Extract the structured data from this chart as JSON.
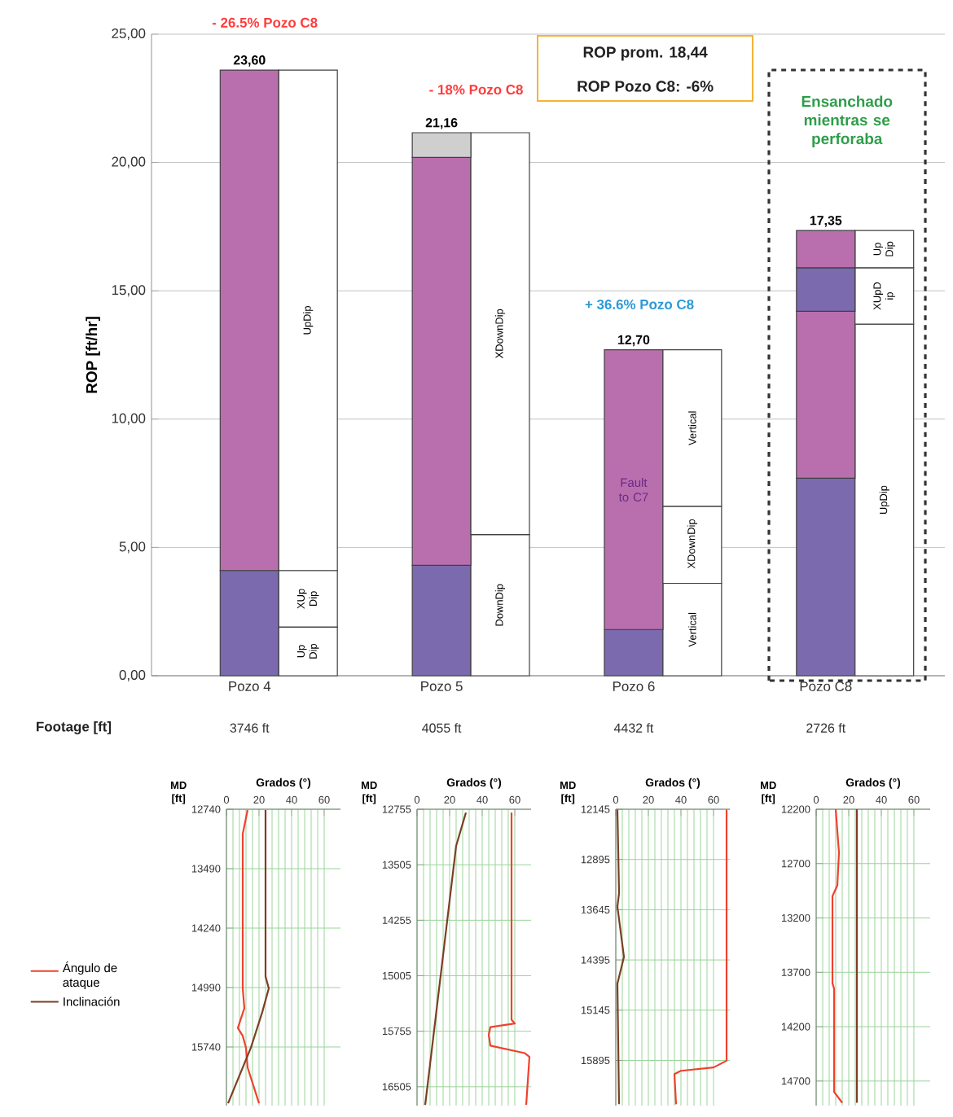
{
  "chart_data": [
    {
      "type": "bar",
      "stacked": true,
      "ylabel": "ROP [ft/hr]",
      "grid": "y",
      "ylim": [
        0,
        25
      ],
      "yticks": [
        {
          "value": 0,
          "label": "0,00"
        },
        {
          "value": 5,
          "label": "5,00"
        },
        {
          "value": 10,
          "label": "10,00"
        },
        {
          "value": 15,
          "label": "15,00"
        },
        {
          "value": 20,
          "label": "20,00"
        },
        {
          "value": 25,
          "label": "25,00"
        }
      ],
      "categories": [
        "Pozo 4",
        null,
        "Pozo 5",
        null,
        "Pozo 6",
        null,
        "Pozo C8",
        null
      ],
      "series": [
        {
          "values": [
            4.1,
            1.9,
            4.3,
            5.5,
            1.8,
            3.6,
            7.7,
            13.7
          ],
          "colors": [
            "#7b6aad",
            "#ffffff",
            "#7b6aad",
            "#ffffff",
            "#7b6aad",
            "#ffffff",
            "#7b6aad",
            "#ffffff"
          ],
          "value_labels": [
            null,
            "Up Dip",
            null,
            "DownDip",
            null,
            "Vertical",
            null,
            "UpDip"
          ]
        },
        {
          "values": [
            19.5,
            2.2,
            15.9,
            15.66,
            10.9,
            3.0,
            6.5,
            2.2
          ],
          "colors": [
            "#b96fae",
            "#ffffff",
            "#b96fae",
            "#ffffff",
            "#b96fae",
            "#ffffff",
            "#b96fae",
            "#ffffff"
          ],
          "value_labels": [
            null,
            "XUp Dip",
            null,
            "XDownDip",
            "Fault to C7",
            "XDownDip",
            null,
            "XUpD ip"
          ]
        },
        {
          "values": [
            null,
            19.5,
            0.96,
            null,
            null,
            6.1,
            1.7,
            1.45
          ],
          "colors": [
            "#ffffff",
            "#ffffff",
            "#cfcfcf",
            "#ffffff",
            "#ffffff",
            "#ffffff",
            "#7b6aad",
            "#ffffff"
          ],
          "value_labels": [
            null,
            "UpDip",
            null,
            null,
            null,
            "Vertical",
            null,
            "Up Dip"
          ]
        },
        {
          "values": [
            null,
            null,
            null,
            null,
            null,
            null,
            1.45,
            null
          ],
          "colors": [
            "#b96fae",
            "#b96fae",
            "#b96fae",
            "#b96fae",
            "#b96fae",
            "#b96fae",
            "#b96fae",
            "#b96fae"
          ]
        }
      ],
      "totals": [
        "23,60",
        null,
        "21,16",
        null,
        "12,70",
        null,
        "17,35",
        null
      ],
      "annotations": [
        "- 26.5% Pozo C8",
        "- 18% Pozo C8",
        "+ 36.6% Pozo C8",
        "ROP prom. 18,44",
        "ROP Pozo C8: -6%",
        "Ensanchado mientras se perforaba",
        "Footage [ft]",
        "3746 ft",
        "4055 ft",
        "4432 ft",
        "2726 ft"
      ]
    },
    {
      "type": "line",
      "xlabel": "Grados (°)",
      "ylabel": "MD [ft]",
      "xlim": [
        0,
        70
      ],
      "ylim": [
        16480,
        12740
      ],
      "xticks": [
        0,
        20,
        40,
        60
      ],
      "yticks": [
        12740,
        13490,
        14240,
        14990,
        15740
      ],
      "grid": true,
      "legend": "left",
      "series": [
        {
          "name": "Ángulo de ataque",
          "color": "#f0412d",
          "x": [
            13,
            10,
            10,
            11,
            7,
            10,
            12,
            13,
            20
          ],
          "values": [
            12750,
            13050,
            15000,
            15250,
            15500,
            15600,
            15750,
            16000,
            16450
          ]
        },
        {
          "name": "Inclinación",
          "color": "#7b3f24",
          "x": [
            24,
            24,
            26,
            22,
            15,
            1
          ],
          "values": [
            12750,
            14850,
            15000,
            15300,
            15750,
            16450
          ]
        }
      ]
    },
    {
      "type": "line",
      "xlabel": "Grados (°)",
      "ylabel": "MD [ft]",
      "xlim": [
        0,
        70
      ],
      "ylim": [
        16760,
        12755
      ],
      "xticks": [
        0,
        20,
        40,
        60
      ],
      "yticks": [
        12755,
        13505,
        14255,
        15005,
        15755,
        16505
      ],
      "grid": true,
      "series": [
        {
          "color": "#f0412d",
          "x": [
            58,
            58,
            60,
            45,
            44,
            45,
            66,
            69,
            67
          ],
          "values": [
            12800,
            15600,
            15650,
            15700,
            15800,
            15950,
            16050,
            16100,
            16750
          ]
        },
        {
          "color": "#7b3f24",
          "x": [
            30,
            24,
            8,
            5
          ],
          "values": [
            12800,
            13250,
            16200,
            16750
          ]
        }
      ]
    },
    {
      "type": "line",
      "xlabel": "Grados (°)",
      "ylabel": "MD [ft]",
      "xlim": [
        0,
        70
      ],
      "ylim": [
        16570,
        12145
      ],
      "xticks": [
        0,
        20,
        40,
        60
      ],
      "yticks": [
        12145,
        12895,
        13645,
        14395,
        15145,
        15895
      ],
      "grid": true,
      "series": [
        {
          "color": "#f0412d",
          "x": [
            68,
            68,
            60,
            40,
            36,
            37
          ],
          "values": [
            12150,
            15900,
            16000,
            16050,
            16100,
            16550
          ]
        },
        {
          "color": "#7b3f24",
          "x": [
            1,
            2,
            1,
            5,
            1,
            2
          ],
          "values": [
            12150,
            13400,
            13600,
            14350,
            14750,
            16550
          ]
        }
      ]
    },
    {
      "type": "line",
      "xlabel": "Grados (°)",
      "ylabel": "MD [ft]",
      "xlim": [
        0,
        70
      ],
      "ylim": [
        14926,
        12200
      ],
      "xticks": [
        0,
        20,
        40,
        60
      ],
      "yticks": [
        12200,
        12700,
        13200,
        13700,
        14200,
        14700
      ],
      "grid": true,
      "series": [
        {
          "color": "#f0412d",
          "x": [
            12,
            14,
            13,
            10,
            10,
            11,
            11,
            16
          ],
          "values": [
            12200,
            12600,
            12900,
            13000,
            13800,
            13850,
            14800,
            14900
          ]
        },
        {
          "color": "#7b3f24",
          "x": [
            25,
            25
          ],
          "values": [
            12200,
            14900
          ]
        }
      ]
    }
  ]
}
